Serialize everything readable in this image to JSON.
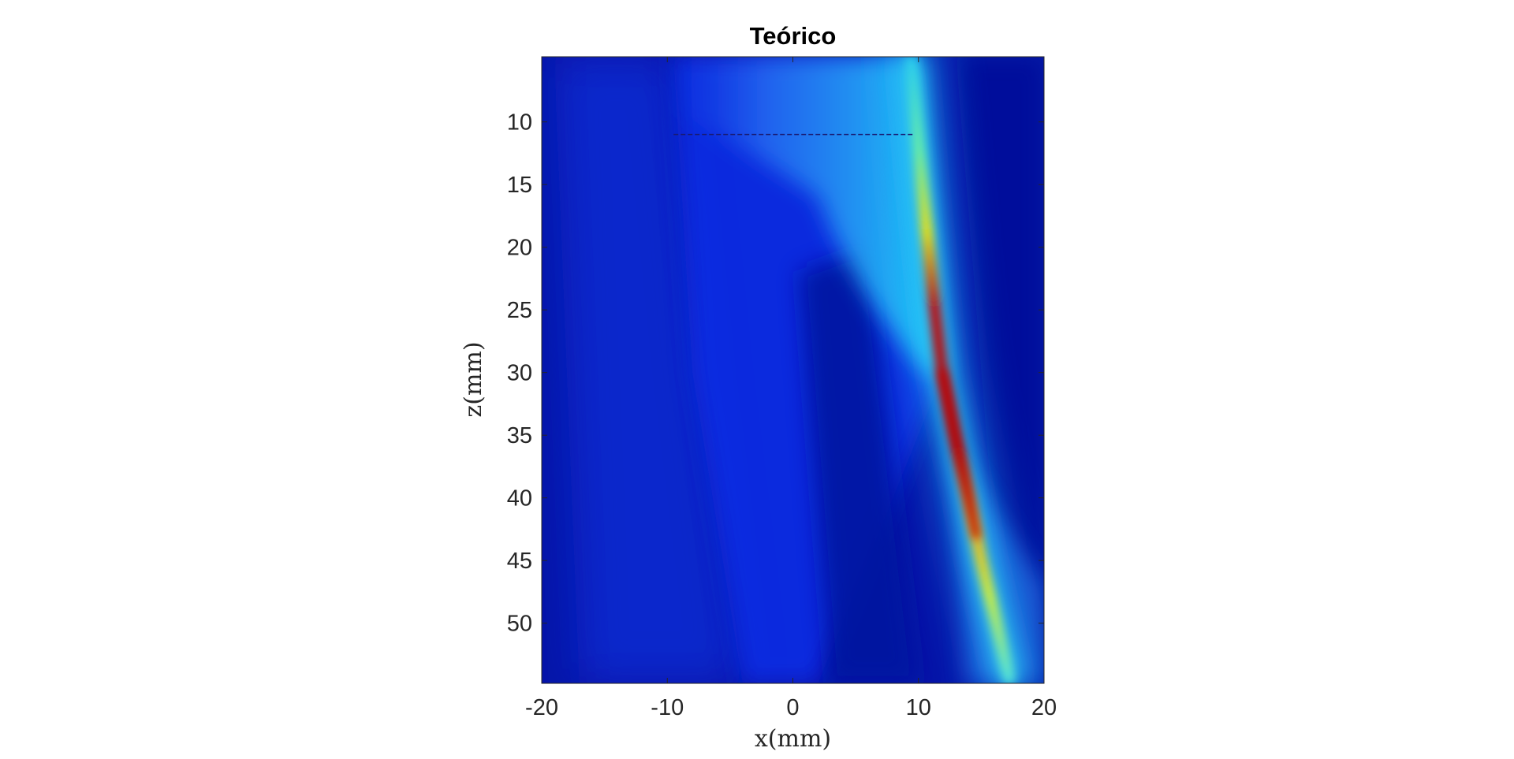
{
  "chart_data": {
    "type": "heatmap",
    "title": "Teórico",
    "xlabel": "x(mm)",
    "ylabel": "z(mm)",
    "xlim": [
      -20,
      20
    ],
    "ylim": [
      4.8,
      54.8
    ],
    "y_reversed": true,
    "xticks": [
      -20,
      -10,
      0,
      10,
      20
    ],
    "yticks": [
      10,
      15,
      20,
      25,
      30,
      35,
      40,
      45,
      50
    ],
    "colormap": "jet",
    "grid": false,
    "background_color": "#0a1fb5",
    "beam_path": [
      {
        "z": 4.8,
        "x": 9.4
      },
      {
        "z": 15,
        "x": 10.3
      },
      {
        "z": 20,
        "x": 10.8
      },
      {
        "z": 25,
        "x": 11.3
      },
      {
        "z": 30,
        "x": 11.9
      },
      {
        "z": 35,
        "x": 12.9
      },
      {
        "z": 40,
        "x": 14.0
      },
      {
        "z": 45,
        "x": 15.0
      },
      {
        "z": 50,
        "x": 16.2
      },
      {
        "z": 54.8,
        "x": 17.3
      }
    ],
    "peak_region": {
      "z_start": 27,
      "z_end": 45,
      "x_center": 13.2,
      "color": "#c00000"
    },
    "dashed_line": {
      "z": 11,
      "x_start": -9.5,
      "x_end": 9.7,
      "color": "#1a1a70"
    }
  }
}
